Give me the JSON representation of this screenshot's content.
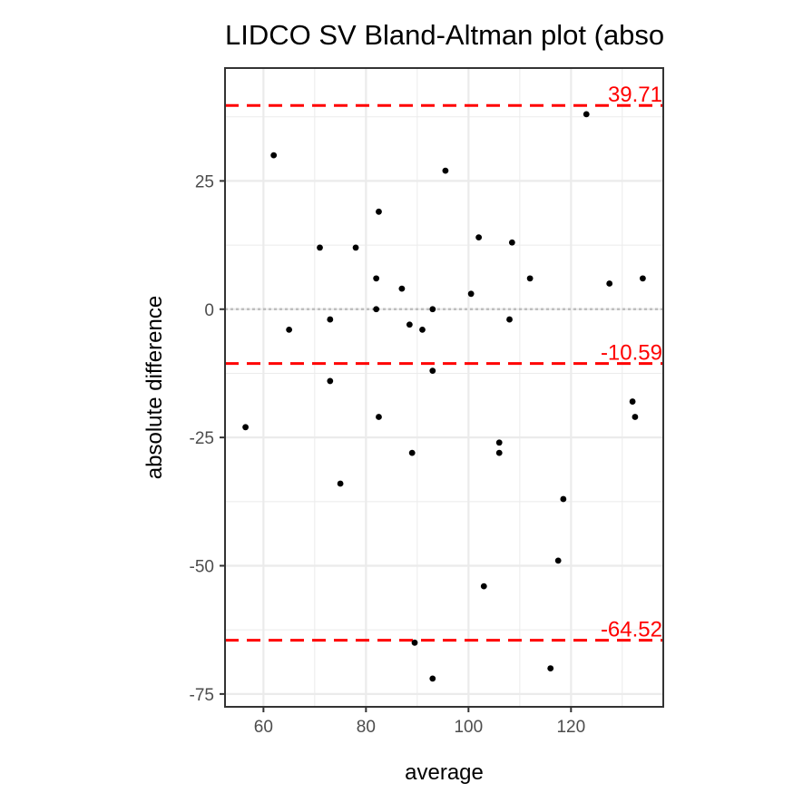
{
  "chart_data": {
    "type": "scatter",
    "title": "LIDCO SV   Bland-Altman plot (abso",
    "xlabel": "average",
    "ylabel": "absolute difference",
    "xlim": [
      52.5,
      138
    ],
    "ylim": [
      -77.5,
      47
    ],
    "x_ticks": [
      60,
      80,
      100,
      120
    ],
    "x_tick_labels": [
      "60",
      "80",
      "100",
      "120"
    ],
    "y_ticks": [
      -75,
      -50,
      -25,
      0,
      25
    ],
    "y_tick_labels": [
      "-75",
      "-50",
      "-25",
      "0",
      "25"
    ],
    "grid": true,
    "zero_line": 0,
    "reference_lines": [
      {
        "value": 39.71,
        "label": "39.71"
      },
      {
        "value": -10.59,
        "label": "-10.59"
      },
      {
        "value": -64.52,
        "label": "-64.52"
      }
    ],
    "points": {
      "x": [
        56.5,
        62,
        65,
        71,
        73,
        73,
        75,
        78,
        82,
        82,
        82.5,
        82.5,
        87,
        88.5,
        89,
        89.5,
        91,
        93,
        93,
        93,
        95.5,
        100.5,
        102,
        103,
        106,
        106,
        108,
        108.5,
        112,
        116,
        117.5,
        118.5,
        123,
        127.5,
        132,
        132.5,
        134
      ],
      "y": [
        -23,
        30,
        -4,
        12,
        -2,
        -14,
        -34,
        12,
        6,
        0,
        19,
        -21,
        4,
        -3,
        -28,
        -65,
        -4,
        0,
        -12,
        -72,
        27,
        3,
        14,
        -54,
        -26,
        -28,
        -2,
        13,
        6,
        -70,
        -49,
        -37,
        38,
        5,
        -18,
        -21,
        6
      ]
    }
  },
  "colors": {
    "reference_line": "#ff0000",
    "points": "#000000",
    "grid": "#ebebeb",
    "zero_line": "#bebebe",
    "panel_border": "#333333"
  }
}
